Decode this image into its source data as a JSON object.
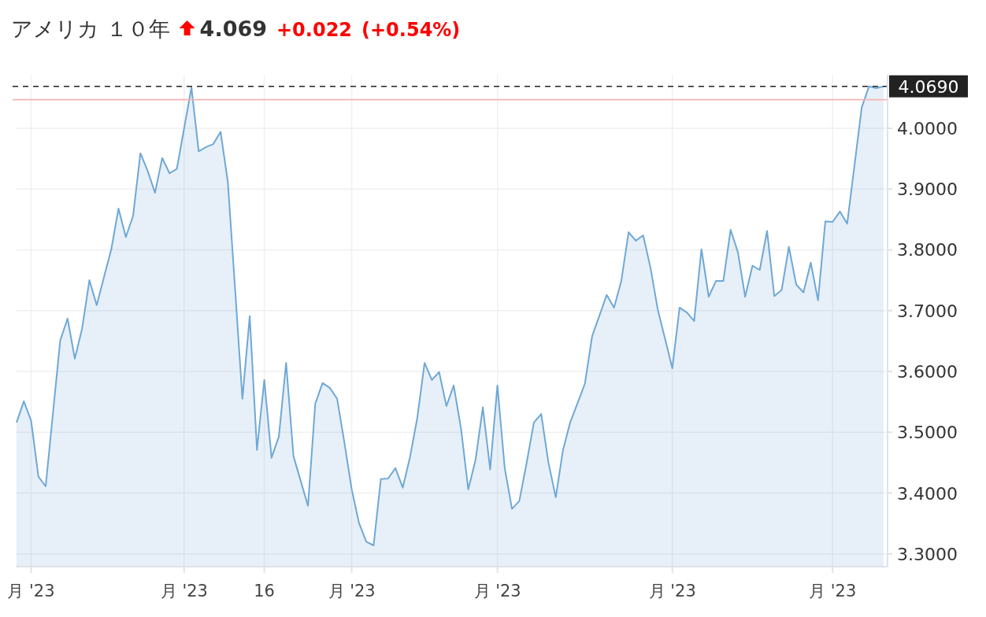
{
  "chart_data": {
    "type": "area",
    "title": "アメリカ １０年",
    "annotations": [
      "4.069",
      "+0.022",
      "(+0.54%)"
    ],
    "categories": [
      null,
      null,
      "月 '23",
      null,
      null,
      null,
      null,
      null,
      null,
      null,
      null,
      null,
      null,
      null,
      null,
      null,
      null,
      null,
      null,
      null,
      null,
      null,
      null,
      "月 '23",
      null,
      null,
      null,
      null,
      null,
      null,
      null,
      null,
      null,
      null,
      "16",
      null,
      null,
      null,
      null,
      null,
      null,
      null,
      null,
      null,
      null,
      null,
      "月 '23",
      null,
      null,
      null,
      null,
      null,
      null,
      null,
      null,
      null,
      null,
      null,
      null,
      null,
      null,
      null,
      null,
      null,
      null,
      null,
      "月 '23",
      null,
      null,
      null,
      null,
      null,
      null,
      null,
      null,
      null,
      null,
      null,
      null,
      null,
      null,
      null,
      null,
      null,
      null,
      null,
      null,
      null,
      null,
      null,
      "月 '23",
      null,
      null,
      null,
      null,
      null,
      null,
      null,
      null,
      null,
      null,
      null,
      null,
      null,
      null,
      null,
      null,
      null,
      null,
      null,
      null,
      null,
      "月 '23",
      null,
      null,
      null,
      null,
      null,
      null,
      null
    ],
    "series": [
      {
        "color": "#6fa8d6",
        "values": [
          3.516,
          3.551,
          3.519,
          3.427,
          3.411,
          3.532,
          3.651,
          3.687,
          3.621,
          3.671,
          3.75,
          3.709,
          3.755,
          3.801,
          3.868,
          3.821,
          3.856,
          3.959,
          3.93,
          3.894,
          3.951,
          3.926,
          3.933,
          4.0,
          4.067,
          3.962,
          3.969,
          3.974,
          3.994,
          3.912,
          3.734,
          3.555,
          3.691,
          3.471,
          3.586,
          3.458,
          3.493,
          3.614,
          3.461,
          3.42,
          3.379,
          3.547,
          3.581,
          3.573,
          3.555,
          3.483,
          3.406,
          3.351,
          3.32,
          3.314,
          3.423,
          3.424,
          3.441,
          3.409,
          3.459,
          3.524,
          3.614,
          3.586,
          3.599,
          3.543,
          3.577,
          3.506,
          3.406,
          3.455,
          3.541,
          3.439,
          3.577,
          3.441,
          3.374,
          3.387,
          3.449,
          3.516,
          3.53,
          3.45,
          3.393,
          3.471,
          3.517,
          3.548,
          3.58,
          3.658,
          3.692,
          3.726,
          3.705,
          3.749,
          3.829,
          3.815,
          3.824,
          3.771,
          3.702,
          3.654,
          3.605,
          3.705,
          3.697,
          3.683,
          3.801,
          3.723,
          3.749,
          3.749,
          3.833,
          3.796,
          3.723,
          3.774,
          3.767,
          3.831,
          3.724,
          3.734,
          3.805,
          3.743,
          3.73,
          3.779,
          3.717,
          3.847,
          3.846,
          3.863,
          3.843,
          3.939,
          4.034,
          4.069,
          4.066,
          4.069
        ]
      }
    ],
    "ylim": [
      3.279,
      4.088
    ],
    "yticks": [
      {
        "value": 3.3,
        "label": "3.3000"
      },
      {
        "value": 3.4,
        "label": "3.4000"
      },
      {
        "value": 3.5,
        "label": "3.5000"
      },
      {
        "value": 3.6,
        "label": "3.6000"
      },
      {
        "value": 3.7,
        "label": "3.7000"
      },
      {
        "value": 3.8,
        "label": "3.8000"
      },
      {
        "value": 3.9,
        "label": "3.9000"
      },
      {
        "value": 4.0,
        "label": "4.0000"
      }
    ],
    "ref_lines": [
      {
        "axis": "y",
        "value": 4.069,
        "label": "4.0690",
        "color": "#222222",
        "line_style": "dashed"
      },
      {
        "axis": "y",
        "value": 4.047,
        "color": "#f7b3b3",
        "line_style": "solid"
      }
    ],
    "grid": true
  }
}
